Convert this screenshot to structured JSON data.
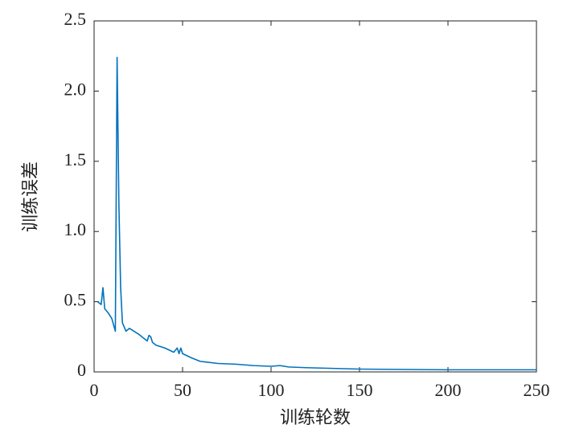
{
  "chart_data": {
    "type": "line",
    "xlabel": "训练轮数",
    "ylabel": "训练误差",
    "x": [
      2,
      4,
      5,
      6,
      8,
      10,
      12,
      13,
      14,
      15,
      16,
      18,
      20,
      25,
      30,
      31,
      32,
      33,
      35,
      40,
      45,
      47,
      48,
      49,
      50,
      55,
      60,
      70,
      80,
      90,
      100,
      105,
      110,
      120,
      150,
      200,
      250
    ],
    "values": [
      0.5,
      0.48,
      0.6,
      0.45,
      0.42,
      0.38,
      0.29,
      2.24,
      1.2,
      0.6,
      0.35,
      0.29,
      0.31,
      0.27,
      0.22,
      0.26,
      0.25,
      0.21,
      0.19,
      0.17,
      0.14,
      0.17,
      0.13,
      0.17,
      0.13,
      0.1,
      0.075,
      0.06,
      0.055,
      0.045,
      0.04,
      0.045,
      0.035,
      0.03,
      0.02,
      0.015,
      0.015
    ],
    "color": "#0072bd",
    "xlim": [
      0,
      250
    ],
    "xticks": [
      0,
      50,
      100,
      150,
      200,
      250
    ],
    "ylim": [
      0,
      2.5
    ],
    "yticks": [
      0,
      0.5,
      {
        "value": 1,
        "label": "1.0"
      },
      1.5,
      {
        "value": 2,
        "label": "2.0"
      },
      2.5
    ]
  }
}
